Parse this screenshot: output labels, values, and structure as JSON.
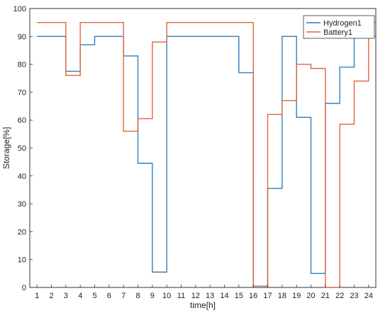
{
  "chart_data": {
    "type": "line",
    "step": true,
    "xlabel": "time[h]",
    "ylabel": "Storage[%]",
    "xlim": [
      0.5,
      24.5
    ],
    "ylim": [
      0,
      100
    ],
    "x_ticks": [
      1,
      2,
      3,
      4,
      5,
      6,
      7,
      8,
      9,
      10,
      11,
      12,
      13,
      14,
      15,
      16,
      17,
      18,
      19,
      20,
      21,
      22,
      23,
      24
    ],
    "y_ticks": [
      0,
      10,
      20,
      30,
      40,
      50,
      60,
      70,
      80,
      90,
      100
    ],
    "grid": false,
    "legend_position": "top-right",
    "x": [
      1,
      2,
      3,
      4,
      5,
      6,
      7,
      8,
      9,
      10,
      11,
      12,
      13,
      14,
      15,
      16,
      17,
      18,
      19,
      20,
      21,
      22,
      23,
      24
    ],
    "series": [
      {
        "name": "Hydrogen1",
        "color": "#2f7fbf",
        "values": [
          90,
          90,
          77.5,
          87,
          90,
          90,
          83,
          44.5,
          5.5,
          90,
          90,
          90,
          90,
          90,
          77,
          0,
          35.5,
          90,
          61,
          5,
          66,
          79,
          90,
          90
        ]
      },
      {
        "name": "Battery1",
        "color": "#e0663a",
        "values": [
          95,
          95,
          76,
          95,
          95,
          95,
          56,
          60.5,
          88,
          95,
          95,
          95,
          95,
          95,
          95,
          0.5,
          62,
          67,
          80,
          78.5,
          0,
          58.5,
          74,
          95
        ]
      }
    ]
  }
}
